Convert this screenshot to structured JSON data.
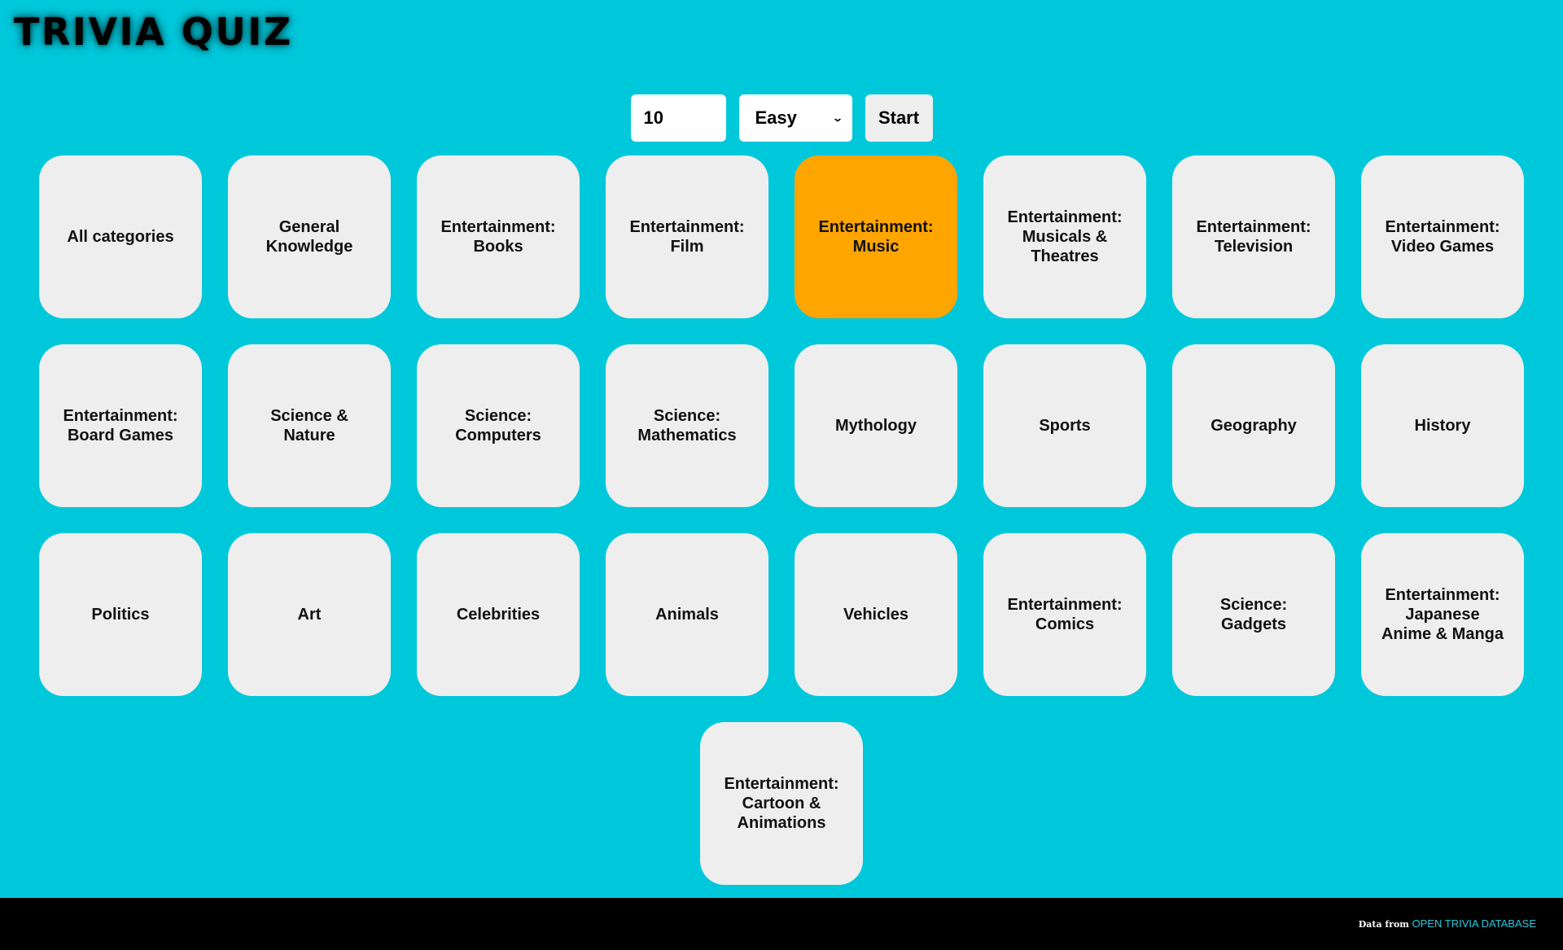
{
  "header": {
    "title": "TRIVIA QUIZ"
  },
  "controls": {
    "count_value": "10",
    "difficulty_selected": "Easy",
    "start_label": "Start"
  },
  "categories": [
    {
      "label": "All categories",
      "selected": false
    },
    {
      "label": "General Knowledge",
      "selected": false
    },
    {
      "label": "Entertainment: Books",
      "selected": false
    },
    {
      "label": "Entertainment: Film",
      "selected": false
    },
    {
      "label": "Entertainment: Music",
      "selected": true
    },
    {
      "label": "Entertainment: Musicals & Theatres",
      "selected": false
    },
    {
      "label": "Entertainment: Television",
      "selected": false
    },
    {
      "label": "Entertainment: Video Games",
      "selected": false
    },
    {
      "label": "Entertainment: Board Games",
      "selected": false
    },
    {
      "label": "Science & Nature",
      "selected": false
    },
    {
      "label": "Science: Computers",
      "selected": false
    },
    {
      "label": "Science: Mathematics",
      "selected": false
    },
    {
      "label": "Mythology",
      "selected": false
    },
    {
      "label": "Sports",
      "selected": false
    },
    {
      "label": "Geography",
      "selected": false
    },
    {
      "label": "History",
      "selected": false
    },
    {
      "label": "Politics",
      "selected": false
    },
    {
      "label": "Art",
      "selected": false
    },
    {
      "label": "Celebrities",
      "selected": false
    },
    {
      "label": "Animals",
      "selected": false
    },
    {
      "label": "Vehicles",
      "selected": false
    },
    {
      "label": "Entertainment: Comics",
      "selected": false
    },
    {
      "label": "Science: Gadgets",
      "selected": false
    },
    {
      "label": "Entertainment: Japanese Anime & Manga",
      "selected": false
    },
    {
      "label": "Entertainment: Cartoon & Animations",
      "selected": false
    }
  ],
  "footer": {
    "prefix": "Data from",
    "link_label": "OPEN TRIVIA DATABASE"
  },
  "colors": {
    "background": "#00c8db",
    "card": "#eeeeee",
    "card_selected": "#ffa500",
    "footer": "#000000",
    "link": "#2bc7de"
  }
}
